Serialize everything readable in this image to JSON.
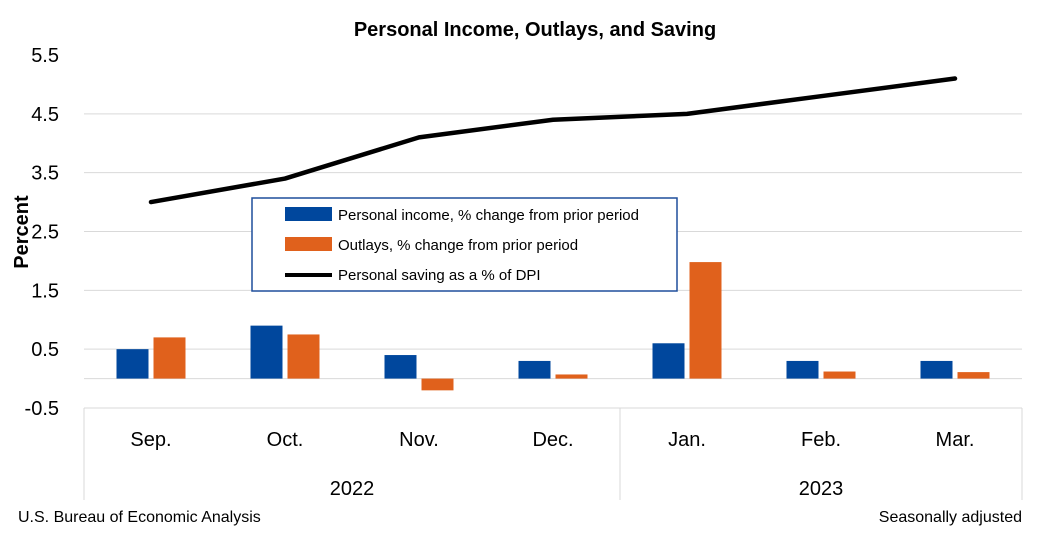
{
  "chart_data": {
    "type": "bar",
    "title": "Personal Income, Outlays, and Saving",
    "ylabel": "Percent",
    "xlabel": "",
    "ylim": [
      -0.5,
      5.5
    ],
    "yticks": [
      "5.5",
      "4.5",
      "3.5",
      "2.5",
      "1.5",
      "0.5",
      "-0.5"
    ],
    "ytick_values": [
      5.5,
      4.5,
      3.5,
      2.5,
      1.5,
      0.5,
      -0.5
    ],
    "categories": [
      "Sep.",
      "Oct.",
      "Nov.",
      "Dec.",
      "Jan.",
      "Feb.",
      "Mar."
    ],
    "groups": [
      {
        "label": "2022",
        "count": 4
      },
      {
        "label": "2023",
        "count": 3
      }
    ],
    "series": [
      {
        "name": "Personal income, % change from prior period",
        "type": "bar",
        "color": "#00479D",
        "values": [
          0.5,
          0.9,
          0.4,
          0.3,
          0.6,
          0.3,
          0.3
        ]
      },
      {
        "name": "Outlays, % change from prior period",
        "type": "bar",
        "color": "#E0611C",
        "values": [
          0.7,
          0.75,
          -0.2,
          0.07,
          1.98,
          0.12,
          0.11
        ]
      },
      {
        "name": "Personal saving as a % of DPI",
        "type": "line",
        "color": "#000000",
        "values": [
          3.0,
          3.4,
          4.1,
          4.4,
          4.5,
          4.8,
          5.1
        ]
      }
    ],
    "grid": true,
    "legend_position": "center-left",
    "source": "U.S. Bureau of Economic Analysis",
    "note": "Seasonally adjusted"
  }
}
